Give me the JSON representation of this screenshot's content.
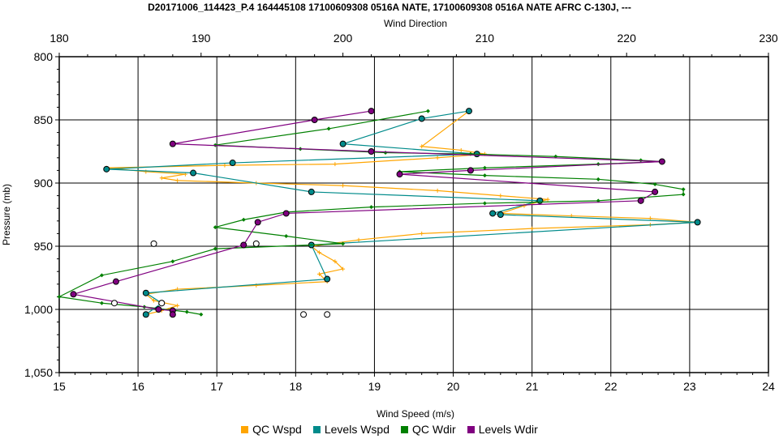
{
  "chart_data": {
    "type": "line",
    "title": "D20171006_114423_P.4 164445108 17100609308 0516A NATE, 17100609308 0516A NATE AFRC C-130J, ---",
    "xlabel": "Wind Speed (m/s)",
    "x2label": "Wind Direction",
    "ylabel": "Pressure (mb)",
    "xlim": [
      15,
      24
    ],
    "x2lim": [
      180,
      230
    ],
    "ylim": [
      800,
      1050
    ],
    "y_inverted": true,
    "grid": true,
    "legend_position": "bottom",
    "x_ticks": [
      "15",
      "16",
      "17",
      "18",
      "19",
      "20",
      "21",
      "22",
      "23",
      "24"
    ],
    "x2_ticks": [
      "180",
      "190",
      "200",
      "210",
      "220",
      "230"
    ],
    "y_ticks": [
      "800",
      "850",
      "900",
      "950",
      "1,000",
      "1,050"
    ],
    "series": [
      {
        "name": "QC Wspd",
        "color": "#FFA500",
        "axis": "bottom",
        "marker": "plus",
        "points": [
          [
            20.2,
            843
          ],
          [
            19.6,
            871
          ],
          [
            20.1,
            874
          ],
          [
            20.4,
            877
          ],
          [
            19.8,
            880
          ],
          [
            18.5,
            885
          ],
          [
            17.1,
            886
          ],
          [
            15.6,
            888
          ],
          [
            16.1,
            891
          ],
          [
            16.6,
            893
          ],
          [
            16.3,
            896
          ],
          [
            16.5,
            898
          ],
          [
            17.5,
            900
          ],
          [
            18.6,
            902
          ],
          [
            19.8,
            906
          ],
          [
            20.6,
            910
          ],
          [
            21.2,
            913
          ],
          [
            20.9,
            918
          ],
          [
            20.6,
            924
          ],
          [
            21.5,
            926
          ],
          [
            22.5,
            928
          ],
          [
            23.1,
            931
          ],
          [
            22.5,
            933
          ],
          [
            21.0,
            936
          ],
          [
            19.6,
            940
          ],
          [
            18.8,
            945
          ],
          [
            18.2,
            950
          ],
          [
            18.3,
            955
          ],
          [
            18.5,
            962
          ],
          [
            18.6,
            968
          ],
          [
            18.3,
            972
          ],
          [
            18.4,
            978
          ],
          [
            17.5,
            981
          ],
          [
            16.5,
            984
          ],
          [
            16.1,
            988
          ],
          [
            16.2,
            993
          ],
          [
            16.5,
            997
          ],
          [
            16.3,
            1001
          ],
          [
            16.1,
            1004
          ]
        ]
      },
      {
        "name": "Levels Wspd",
        "color": "#008B8B",
        "axis": "bottom",
        "marker": "circle",
        "points": [
          [
            20.2,
            843
          ],
          [
            19.6,
            849
          ],
          [
            18.6,
            869
          ],
          [
            20.3,
            877
          ],
          [
            17.2,
            884
          ],
          [
            15.6,
            889
          ],
          [
            16.7,
            892
          ],
          [
            18.2,
            907
          ],
          [
            21.1,
            914
          ],
          [
            20.5,
            924
          ],
          [
            20.6,
            925
          ],
          [
            23.1,
            931
          ],
          [
            18.2,
            949
          ],
          [
            18.4,
            976
          ],
          [
            16.1,
            987
          ],
          [
            16.3,
            995
          ],
          [
            16.1,
            1004
          ]
        ]
      },
      {
        "name": "QC Wdir",
        "color": "#008000",
        "axis": "top",
        "marker": "diamond",
        "points": [
          [
            206,
            843
          ],
          [
            199,
            857
          ],
          [
            191,
            870
          ],
          [
            197,
            873
          ],
          [
            203,
            876
          ],
          [
            209,
            877
          ],
          [
            215,
            879
          ],
          [
            221,
            882
          ],
          [
            222.5,
            883
          ],
          [
            218,
            885
          ],
          [
            210,
            888
          ],
          [
            204,
            891
          ],
          [
            210,
            894
          ],
          [
            218,
            897
          ],
          [
            222,
            901
          ],
          [
            224,
            905
          ],
          [
            224,
            909
          ],
          [
            218,
            914
          ],
          [
            210,
            916
          ],
          [
            202,
            919
          ],
          [
            196,
            923
          ],
          [
            193,
            929
          ],
          [
            191,
            935
          ],
          [
            196,
            942
          ],
          [
            200,
            948
          ],
          [
            191,
            952
          ],
          [
            188,
            962
          ],
          [
            183,
            973
          ],
          [
            180,
            990
          ],
          [
            183,
            995
          ],
          [
            186,
            998
          ],
          [
            189,
            1002
          ],
          [
            190,
            1004
          ]
        ]
      },
      {
        "name": "Levels Wdir",
        "color": "#800080",
        "axis": "top",
        "marker": "circle",
        "points": [
          [
            202,
            843
          ],
          [
            198,
            850
          ],
          [
            188,
            869
          ],
          [
            202,
            875
          ],
          [
            222.5,
            883
          ],
          [
            209,
            890
          ],
          [
            204,
            893
          ],
          [
            222,
            907
          ],
          [
            221,
            914
          ],
          [
            196,
            924
          ],
          [
            194,
            931
          ],
          [
            193,
            949
          ],
          [
            184,
            978
          ],
          [
            181,
            988
          ],
          [
            187,
            1000
          ],
          [
            188,
            1001
          ],
          [
            188,
            1004
          ]
        ]
      },
      {
        "name": "",
        "color": "#000000",
        "axis": "bottom",
        "marker": "circle-open",
        "points": [
          [
            16.2,
            948
          ],
          [
            17.5,
            948
          ],
          [
            15.7,
            995
          ],
          [
            16.3,
            995
          ],
          [
            18.1,
            1004
          ],
          [
            18.4,
            1004
          ]
        ]
      }
    ]
  }
}
